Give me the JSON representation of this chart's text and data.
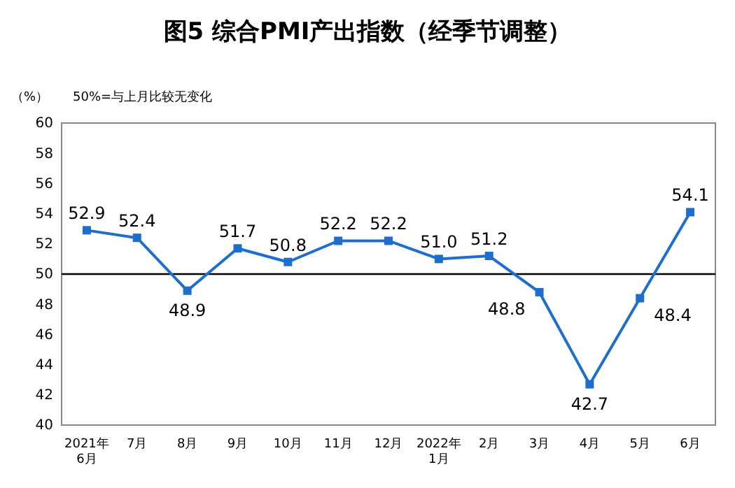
{
  "chart_data": {
    "type": "line",
    "title": "图5 综合PMI产出指数（经季节调整）",
    "annotations": [
      "（%）",
      "50%=与上月比较无变化"
    ],
    "categories": [
      "2021年\n6月",
      "7月",
      "8月",
      "9月",
      "10月",
      "11月",
      "12月",
      "2022年\n1月",
      "2月",
      "3月",
      "4月",
      "5月",
      "6月"
    ],
    "series": [
      {
        "color": "#1e6fcb",
        "values": [
          52.9,
          52.4,
          48.9,
          51.7,
          50.8,
          52.2,
          52.2,
          51.0,
          51.2,
          48.8,
          42.7,
          48.4,
          54.1
        ],
        "value_labels": [
          "52.9",
          "52.4",
          "48.9",
          "51.7",
          "50.8",
          "52.2",
          "52.2",
          "51.0",
          "51.2",
          "48.8",
          "42.7",
          "48.4",
          "54.1"
        ]
      }
    ],
    "ylim": [
      40,
      60
    ],
    "yticks": [
      40,
      42,
      44,
      46,
      48,
      50,
      52,
      54,
      56,
      58,
      60
    ],
    "ref_lines": [
      {
        "axis": "y",
        "value": 50,
        "color": "#000000"
      }
    ],
    "grid": false,
    "marker": "square",
    "line_style": "solid"
  }
}
